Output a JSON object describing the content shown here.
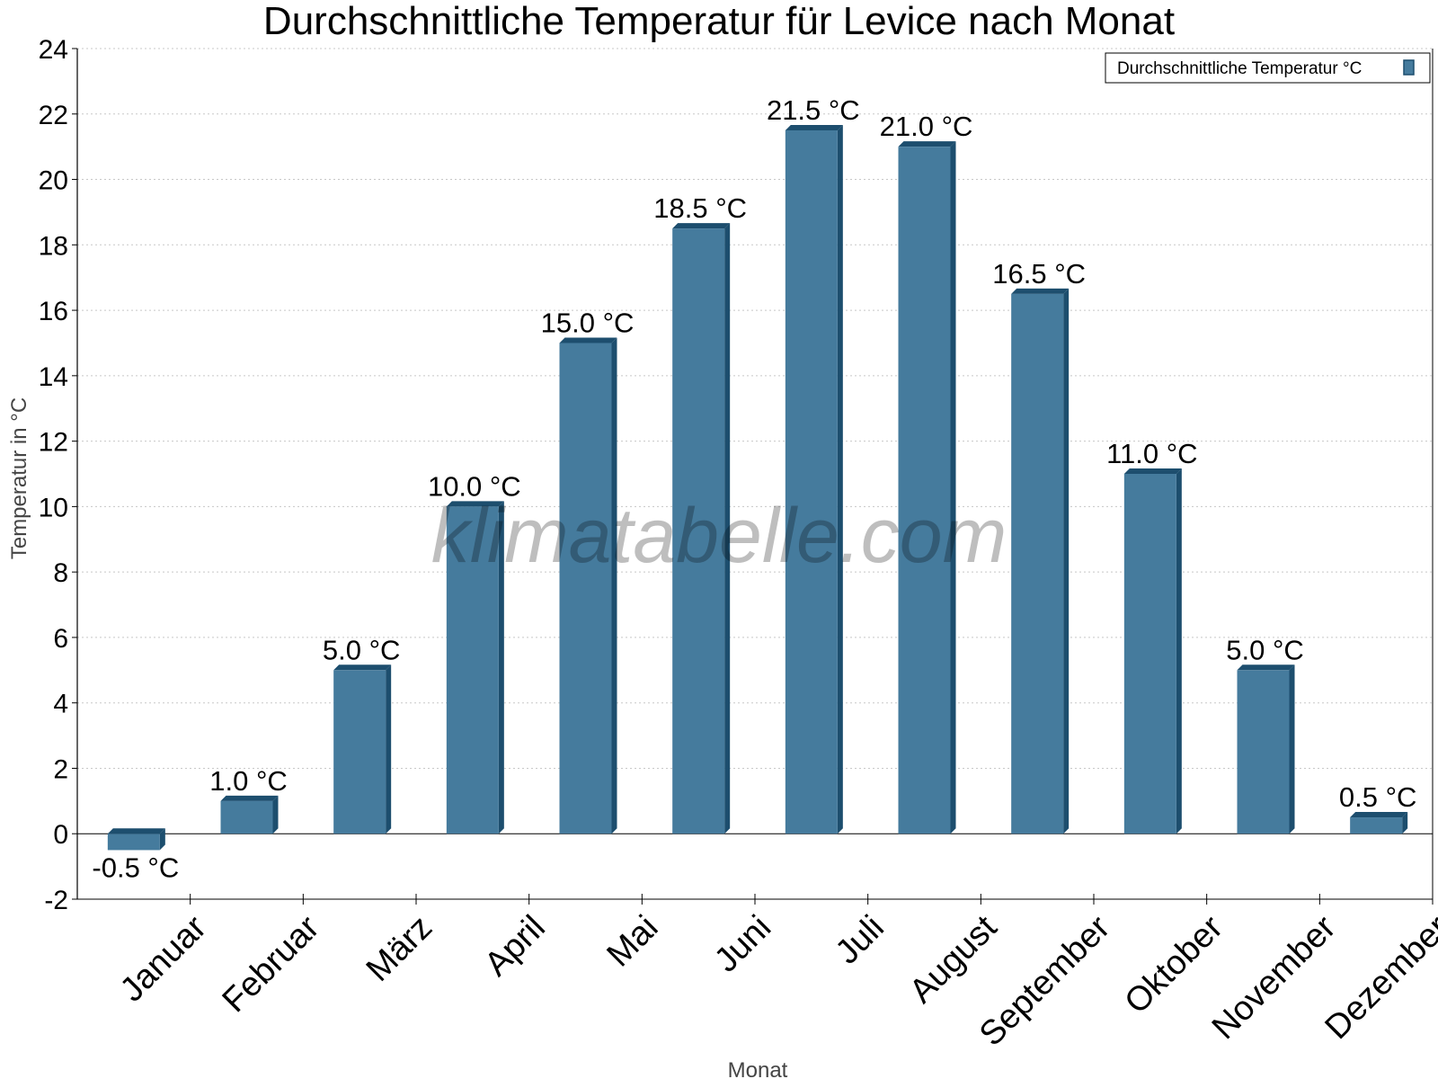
{
  "chart_data": {
    "type": "bar",
    "title": "Durchschnittliche Temperatur für Levice nach Monat",
    "xlabel": "Monat",
    "ylabel": "Temperatur in °C",
    "categories": [
      "Januar",
      "Februar",
      "März",
      "April",
      "Mai",
      "Juni",
      "Juli",
      "August",
      "September",
      "Oktober",
      "November",
      "Dezember"
    ],
    "series": [
      {
        "name": "Durchschnittliche Temperatur °C",
        "values": [
          -0.5,
          1.0,
          5.0,
          10.0,
          15.0,
          18.5,
          21.5,
          21.0,
          16.5,
          11.0,
          5.0,
          0.5
        ],
        "labels": [
          "-0.5 °C",
          "1.0 °C",
          "5.0 °C",
          "10.0 °C",
          "15.0 °C",
          "18.5 °C",
          "21.5 °C",
          "21.0 °C",
          "16.5 °C",
          "11.0 °C",
          "5.0 °C",
          "0.5 °C"
        ],
        "color": "#457b9d",
        "edge_color": "#1d4e6e"
      }
    ],
    "ylim": [
      -2,
      24
    ],
    "yticks": [
      "-2",
      "0",
      "2",
      "4",
      "6",
      "8",
      "10",
      "12",
      "14",
      "16",
      "18",
      "20",
      "22",
      "24"
    ],
    "grid": true,
    "legend_position": "top-right"
  },
  "watermark": "klimatabelle.com"
}
